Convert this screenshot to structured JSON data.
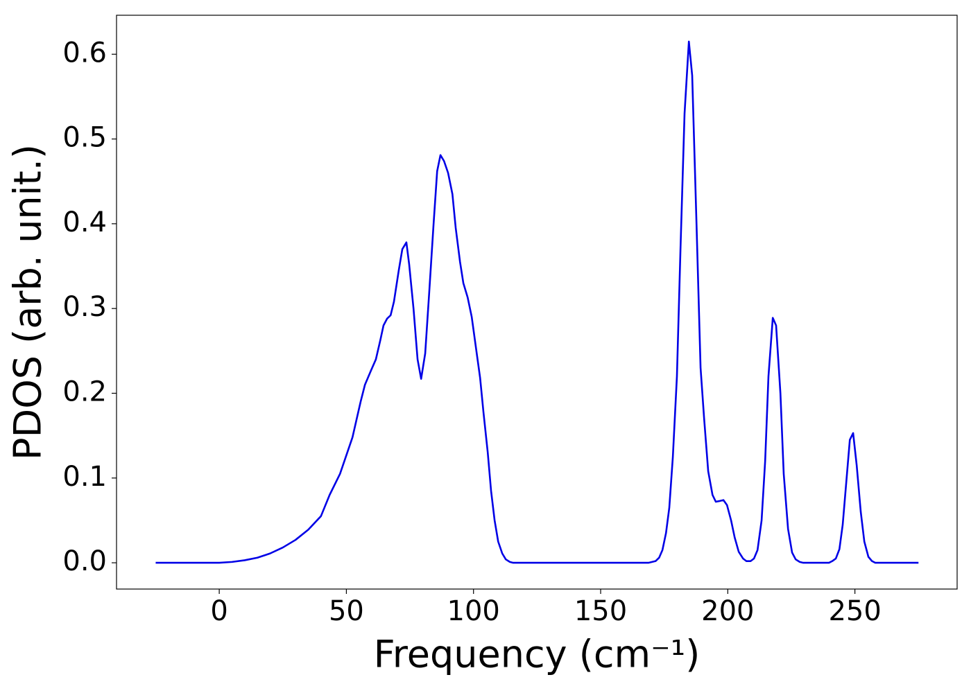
{
  "chart_data": {
    "type": "line",
    "xlabel": "Frequency (cm⁻¹)",
    "ylabel": "PDOS (arb. unit.)",
    "xlim": [
      -40.4,
      290.2
    ],
    "ylim": [
      -0.031,
      0.646
    ],
    "xticks": [
      0,
      50,
      100,
      150,
      200,
      250
    ],
    "yticks": [
      {
        "value": 0,
        "label": "0.0"
      },
      0.1,
      0.2,
      0.3,
      0.4,
      0.5,
      0.6
    ],
    "grid": false,
    "series": [
      {
        "name": "PDOS",
        "color": "#0000e6",
        "x": [
          -25,
          0,
          5,
          10,
          15,
          20,
          25,
          30,
          35,
          40,
          43.4,
          47.5,
          52.4,
          55.6,
          57.3,
          59.7,
          61.6,
          63.3,
          64.6,
          66,
          67.4,
          68.7,
          70.6,
          72,
          73.6,
          74.7,
          76.4,
          78,
          79.4,
          81,
          82.6,
          84.3,
          85.7,
          87,
          88.4,
          90,
          91.7,
          93,
          94.7,
          96,
          97.7,
          99.3,
          100.9,
          102.6,
          103.9,
          105.6,
          106.9,
          108.3,
          109.7,
          111.3,
          112.7,
          114.3,
          115.6,
          168.8,
          171.6,
          173,
          174.3,
          175.7,
          177,
          178.4,
          180,
          181.4,
          183,
          184.7,
          186,
          187.7,
          189.3,
          190.7,
          192.3,
          194,
          195.3,
          197,
          198.3,
          199.7,
          201.3,
          202.7,
          204.3,
          206,
          207.3,
          209,
          210.3,
          211.7,
          213.3,
          214.7,
          216,
          217.7,
          219,
          220.7,
          222,
          223.7,
          225.3,
          226.7,
          228.3,
          229.7,
          239.8,
          241.1,
          242.5,
          243.9,
          245.2,
          246.6,
          248,
          249.3,
          250.7,
          252.3,
          253.7,
          255.3,
          256.7,
          258,
          275
        ],
        "values": [
          0,
          0,
          0.001,
          0.003,
          0.006,
          0.011,
          0.018,
          0.027,
          0.039,
          0.055,
          0.08,
          0.105,
          0.148,
          0.19,
          0.21,
          0.227,
          0.24,
          0.262,
          0.28,
          0.288,
          0.292,
          0.308,
          0.345,
          0.37,
          0.378,
          0.352,
          0.3,
          0.24,
          0.217,
          0.247,
          0.32,
          0.4,
          0.462,
          0.481,
          0.474,
          0.46,
          0.435,
          0.395,
          0.355,
          0.33,
          0.313,
          0.29,
          0.255,
          0.218,
          0.178,
          0.13,
          0.085,
          0.05,
          0.025,
          0.011,
          0.004,
          0.001,
          0,
          0,
          0.002,
          0.006,
          0.015,
          0.035,
          0.065,
          0.125,
          0.22,
          0.37,
          0.53,
          0.615,
          0.575,
          0.4,
          0.23,
          0.17,
          0.108,
          0.08,
          0.072,
          0.073,
          0.074,
          0.068,
          0.05,
          0.03,
          0.013,
          0.005,
          0.002,
          0.002,
          0.005,
          0.015,
          0.05,
          0.12,
          0.22,
          0.289,
          0.28,
          0.2,
          0.105,
          0.04,
          0.012,
          0.004,
          0.001,
          0,
          0,
          0.002,
          0.005,
          0.016,
          0.045,
          0.095,
          0.145,
          0.153,
          0.115,
          0.06,
          0.025,
          0.007,
          0.002,
          0,
          0
        ]
      }
    ]
  }
}
